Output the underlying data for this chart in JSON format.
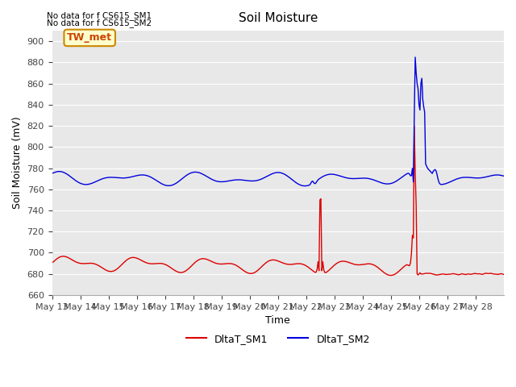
{
  "title": "Soil Moisture",
  "xlabel": "Time",
  "ylabel": "Soil Moisture (mV)",
  "ylim": [
    660,
    910
  ],
  "yticks": [
    660,
    680,
    700,
    720,
    740,
    760,
    780,
    800,
    820,
    840,
    860,
    880,
    900
  ],
  "bg_color": "#e8e8e8",
  "fig_bg_color": "#ffffff",
  "grid_color": "#ffffff",
  "line1_color": "#dd0000",
  "line2_color": "#0000dd",
  "legend_labels": [
    "DltaT_SM1",
    "DltaT_SM2"
  ],
  "text_annotations": [
    "No data for f CS615_SM1",
    "No data for f CS615_SM2"
  ],
  "legend_box_label": "TW_met",
  "legend_box_facecolor": "#ffffcc",
  "legend_box_edgecolor": "#cc8800",
  "x_tick_labels": [
    "May 13",
    "May 14",
    "May 15",
    "May 16",
    "May 17",
    "May 18",
    "May 19",
    "May 20",
    "May 21",
    "May 22",
    "May 23",
    "May 24",
    "May 25",
    "May 26",
    "May 27",
    "May 28"
  ],
  "num_points": 480
}
